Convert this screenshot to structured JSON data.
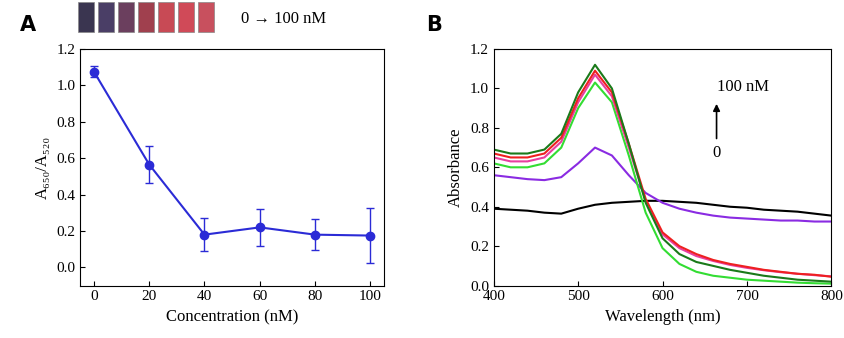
{
  "chart_data": [
    {
      "type": "line",
      "title": "A",
      "annotations": [
        "0 → 100 nM"
      ],
      "x_label": "Concentration (nM)",
      "y_label": "A₆₅₀/A₅₂₀",
      "x": [
        0,
        20,
        40,
        60,
        80,
        100
      ],
      "series": [
        {
          "color": "#2b2bd6",
          "marker": "o",
          "values": [
            1.075,
            0.565,
            0.18,
            0.22,
            0.18,
            0.175
          ],
          "error": [
            0.03,
            0.1,
            0.09,
            0.1,
            0.085,
            0.15
          ]
        }
      ],
      "xlim": [
        -5,
        105
      ],
      "xticks": [
        0,
        20,
        40,
        60,
        80,
        100
      ],
      "ylim": [
        -0.1,
        1.2
      ],
      "yticks": [
        0.0,
        0.2,
        0.4,
        0.6,
        0.8,
        1.0,
        1.2
      ]
    },
    {
      "type": "line",
      "title": "B",
      "annotations": [
        "100 nM",
        "0"
      ],
      "x_label": "Wavelength (nm)",
      "y_label": "Absorbance",
      "x": [
        400,
        420,
        440,
        460,
        480,
        500,
        520,
        540,
        560,
        580,
        600,
        620,
        640,
        660,
        680,
        700,
        720,
        740,
        760,
        780,
        800
      ],
      "series": [
        {
          "color": "#000000",
          "values": [
            0.39,
            0.385,
            0.38,
            0.37,
            0.365,
            0.39,
            0.41,
            0.42,
            0.425,
            0.43,
            0.43,
            0.425,
            0.42,
            0.41,
            0.4,
            0.395,
            0.385,
            0.38,
            0.375,
            0.365,
            0.355
          ]
        },
        {
          "color": "#8a2be2",
          "values": [
            0.56,
            0.55,
            0.54,
            0.535,
            0.55,
            0.62,
            0.7,
            0.66,
            0.56,
            0.47,
            0.42,
            0.39,
            0.37,
            0.355,
            0.345,
            0.34,
            0.335,
            0.33,
            0.33,
            0.325,
            0.325
          ]
        },
        {
          "color": "#33dd33",
          "values": [
            0.62,
            0.6,
            0.6,
            0.62,
            0.7,
            0.9,
            1.03,
            0.93,
            0.66,
            0.37,
            0.19,
            0.11,
            0.07,
            0.05,
            0.04,
            0.03,
            0.025,
            0.02,
            0.015,
            0.012,
            0.01
          ]
        },
        {
          "color": "#e83ea0",
          "values": [
            0.65,
            0.63,
            0.63,
            0.65,
            0.73,
            0.93,
            1.07,
            0.96,
            0.7,
            0.43,
            0.26,
            0.19,
            0.15,
            0.125,
            0.105,
            0.09,
            0.078,
            0.068,
            0.06,
            0.053,
            0.047
          ]
        },
        {
          "color": "#ee2020",
          "values": [
            0.67,
            0.65,
            0.65,
            0.67,
            0.75,
            0.95,
            1.09,
            0.98,
            0.72,
            0.44,
            0.27,
            0.2,
            0.16,
            0.13,
            0.11,
            0.095,
            0.08,
            0.07,
            0.06,
            0.055,
            0.045
          ]
        },
        {
          "color": "#1a7a1a",
          "values": [
            0.69,
            0.67,
            0.67,
            0.69,
            0.77,
            0.98,
            1.12,
            1.0,
            0.72,
            0.42,
            0.24,
            0.16,
            0.12,
            0.1,
            0.08,
            0.065,
            0.05,
            0.04,
            0.03,
            0.025,
            0.02
          ]
        }
      ],
      "xlim": [
        400,
        800
      ],
      "xticks": [
        400,
        500,
        600,
        700,
        800
      ],
      "ylim": [
        0.0,
        1.2
      ],
      "yticks": [
        0.0,
        0.2,
        0.4,
        0.6,
        0.8,
        1.0,
        1.2
      ]
    }
  ]
}
